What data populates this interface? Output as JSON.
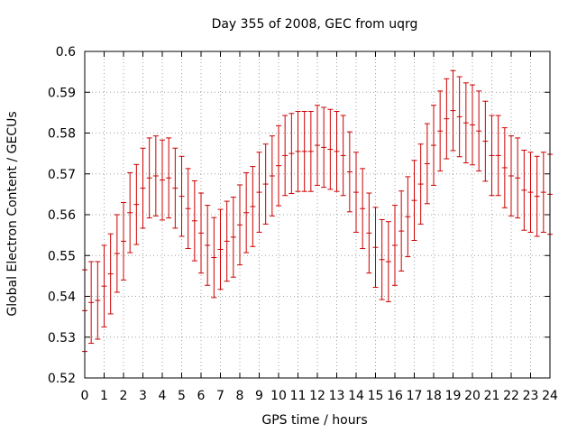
{
  "chart_data": {
    "type": "scatter",
    "title": "Day 355 of 2008, GEC from uqrg",
    "xlabel": "GPS time / hours",
    "ylabel": "Global Electron Content / GECUs",
    "xlim": [
      0,
      24
    ],
    "ylim": [
      0.52,
      0.6
    ],
    "xticks": [
      0,
      1,
      2,
      3,
      4,
      5,
      6,
      7,
      8,
      9,
      10,
      11,
      12,
      13,
      14,
      15,
      16,
      17,
      18,
      19,
      20,
      21,
      22,
      23,
      24
    ],
    "yticks": [
      0.52,
      0.53,
      0.54,
      0.55,
      0.56,
      0.57,
      0.58,
      0.59,
      0.6
    ],
    "ytick_labels": [
      "0.52",
      "0.53",
      "0.54",
      "0.55",
      "0.56",
      "0.57",
      "0.58",
      "0.59",
      "0.6"
    ],
    "grid": true,
    "error_bar_color": "#cc0000",
    "series": [
      {
        "x": [
          0,
          0.333,
          0.667,
          1,
          1.333,
          1.667,
          2,
          2.333,
          2.667,
          3,
          3.333,
          3.667,
          4,
          4.333,
          4.667,
          5,
          5.333,
          5.667,
          6,
          6.333,
          6.667,
          7,
          7.333,
          7.667,
          8,
          8.333,
          8.667,
          9,
          9.333,
          9.667,
          10,
          10.333,
          10.667,
          11,
          11.333,
          11.667,
          12,
          12.333,
          12.667,
          13,
          13.333,
          13.667,
          14,
          14.333,
          14.667,
          15,
          15.333,
          15.667,
          16,
          16.333,
          16.667,
          17,
          17.333,
          17.667,
          18,
          18.333,
          18.667,
          19,
          19.333,
          19.667,
          20,
          20.333,
          20.667,
          21,
          21.333,
          21.667,
          22,
          22.333,
          22.667,
          23,
          23.333,
          23.667,
          24
        ],
        "y": [
          0.5365,
          0.5385,
          0.539,
          0.5425,
          0.5455,
          0.5505,
          0.5535,
          0.5605,
          0.5625,
          0.5665,
          0.569,
          0.5695,
          0.5685,
          0.569,
          0.5665,
          0.5645,
          0.5615,
          0.5585,
          0.5555,
          0.5525,
          0.5495,
          0.5515,
          0.5535,
          0.5545,
          0.5575,
          0.5605,
          0.562,
          0.5655,
          0.5675,
          0.5695,
          0.572,
          0.5745,
          0.575,
          0.5755,
          0.5755,
          0.5755,
          0.577,
          0.5765,
          0.576,
          0.5755,
          0.5745,
          0.5705,
          0.5655,
          0.5615,
          0.5555,
          0.552,
          0.549,
          0.5485,
          0.5525,
          0.556,
          0.5595,
          0.5635,
          0.5675,
          0.5725,
          0.577,
          0.5805,
          0.5835,
          0.5855,
          0.584,
          0.5825,
          0.582,
          0.5805,
          0.578,
          0.5745,
          0.5745,
          0.5715,
          0.5695,
          0.569,
          0.566,
          0.5655,
          0.5645,
          0.5655,
          0.565
        ],
        "err": [
          0.01,
          0.01,
          0.0095,
          0.01,
          0.0098,
          0.0095,
          0.0095,
          0.0098,
          0.0098,
          0.0098,
          0.0098,
          0.0098,
          0.0098,
          0.0098,
          0.0098,
          0.0098,
          0.0098,
          0.0098,
          0.0098,
          0.0098,
          0.0098,
          0.0098,
          0.0098,
          0.0098,
          0.0098,
          0.0098,
          0.0098,
          0.0098,
          0.0098,
          0.0098,
          0.0098,
          0.0098,
          0.0098,
          0.0098,
          0.0098,
          0.0098,
          0.0098,
          0.0098,
          0.0098,
          0.0098,
          0.0098,
          0.0098,
          0.0098,
          0.0098,
          0.0098,
          0.0098,
          0.0098,
          0.0098,
          0.0098,
          0.0098,
          0.0098,
          0.0098,
          0.0098,
          0.0098,
          0.0098,
          0.0098,
          0.0098,
          0.0098,
          0.0098,
          0.0098,
          0.0098,
          0.0098,
          0.0098,
          0.0098,
          0.0098,
          0.0098,
          0.0098,
          0.0098,
          0.0098,
          0.0098,
          0.0098,
          0.0098,
          0.0098
        ]
      }
    ]
  }
}
